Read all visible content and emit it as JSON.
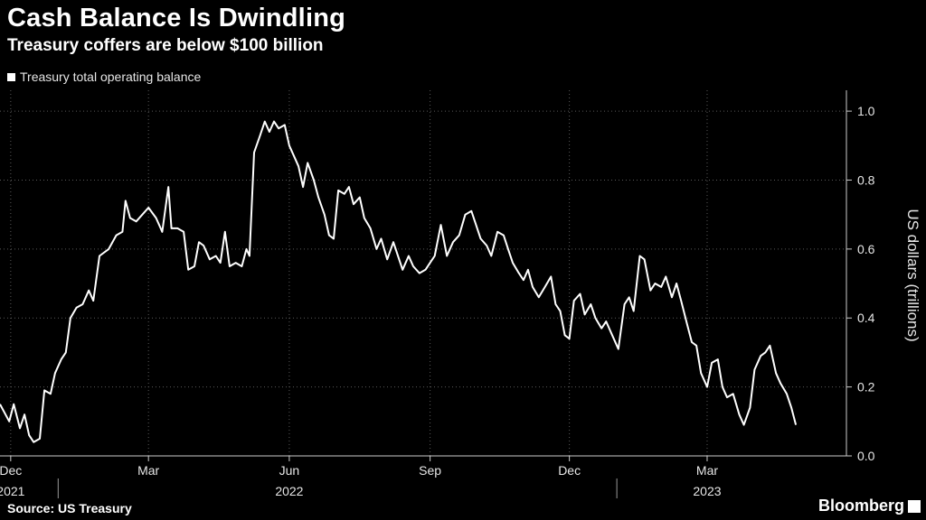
{
  "title": "Cash Balance Is Dwindling",
  "subtitle": "Treasury coffers are below $100 billion",
  "source": "Source: US Treasury",
  "brand": "Bloomberg",
  "colors": {
    "background": "#000000",
    "line": "#ffffff",
    "grid": "#5a5a5a"
  },
  "chart_data": {
    "type": "line",
    "ylabel": "US dollars (trillions)",
    "ylim": [
      0,
      1.05
    ],
    "yticks": [
      0.0,
      0.2,
      0.4,
      0.6,
      0.8,
      1.0
    ],
    "ytick_labels": [
      "0.0",
      "0.2",
      "0.4",
      "0.6",
      "0.8",
      "1.0"
    ],
    "xlim": [
      "2021-11-24",
      "2023-05-31"
    ],
    "xticks": [
      {
        "date": "2021-12-01",
        "label": "Dec"
      },
      {
        "date": "2022-03-01",
        "label": "Mar"
      },
      {
        "date": "2022-06-01",
        "label": "Jun"
      },
      {
        "date": "2022-09-01",
        "label": "Sep"
      },
      {
        "date": "2022-12-01",
        "label": "Dec"
      },
      {
        "date": "2023-03-01",
        "label": "Mar"
      }
    ],
    "years": [
      {
        "date": "2021-12-01",
        "label": "2021"
      },
      {
        "date": "2022-06-01",
        "label": "2022"
      },
      {
        "date": "2023-03-01",
        "label": "2023"
      }
    ],
    "year_dividers": [
      "2022-01-01",
      "2023-01-01"
    ],
    "grid": true,
    "legend": {
      "position": "top-left",
      "entries": [
        "Treasury total operating balance"
      ]
    },
    "series": [
      {
        "name": "Treasury total operating balance",
        "points": [
          [
            "2021-11-24",
            0.15
          ],
          [
            "2021-11-30",
            0.1
          ],
          [
            "2021-12-03",
            0.15
          ],
          [
            "2021-12-07",
            0.08
          ],
          [
            "2021-12-10",
            0.12
          ],
          [
            "2021-12-13",
            0.06
          ],
          [
            "2021-12-16",
            0.04
          ],
          [
            "2021-12-20",
            0.05
          ],
          [
            "2021-12-23",
            0.19
          ],
          [
            "2021-12-27",
            0.18
          ],
          [
            "2021-12-30",
            0.24
          ],
          [
            "2022-01-03",
            0.28
          ],
          [
            "2022-01-06",
            0.3
          ],
          [
            "2022-01-09",
            0.4
          ],
          [
            "2022-01-13",
            0.43
          ],
          [
            "2022-01-17",
            0.44
          ],
          [
            "2022-01-21",
            0.48
          ],
          [
            "2022-01-24",
            0.45
          ],
          [
            "2022-01-28",
            0.58
          ],
          [
            "2022-02-03",
            0.6
          ],
          [
            "2022-02-08",
            0.64
          ],
          [
            "2022-02-12",
            0.65
          ],
          [
            "2022-02-14",
            0.74
          ],
          [
            "2022-02-17",
            0.69
          ],
          [
            "2022-02-21",
            0.68
          ],
          [
            "2022-02-25",
            0.7
          ],
          [
            "2022-03-01",
            0.72
          ],
          [
            "2022-03-06",
            0.69
          ],
          [
            "2022-03-10",
            0.65
          ],
          [
            "2022-03-14",
            0.78
          ],
          [
            "2022-03-16",
            0.66
          ],
          [
            "2022-03-20",
            0.66
          ],
          [
            "2022-03-24",
            0.65
          ],
          [
            "2022-03-27",
            0.54
          ],
          [
            "2022-03-31",
            0.55
          ],
          [
            "2022-04-03",
            0.62
          ],
          [
            "2022-04-06",
            0.61
          ],
          [
            "2022-04-10",
            0.57
          ],
          [
            "2022-04-14",
            0.58
          ],
          [
            "2022-04-17",
            0.56
          ],
          [
            "2022-04-20",
            0.65
          ],
          [
            "2022-04-23",
            0.55
          ],
          [
            "2022-04-27",
            0.56
          ],
          [
            "2022-05-01",
            0.55
          ],
          [
            "2022-05-04",
            0.6
          ],
          [
            "2022-05-06",
            0.58
          ],
          [
            "2022-05-09",
            0.88
          ],
          [
            "2022-05-13",
            0.93
          ],
          [
            "2022-05-16",
            0.97
          ],
          [
            "2022-05-19",
            0.94
          ],
          [
            "2022-05-22",
            0.97
          ],
          [
            "2022-05-25",
            0.95
          ],
          [
            "2022-05-29",
            0.96
          ],
          [
            "2022-06-01",
            0.9
          ],
          [
            "2022-06-04",
            0.87
          ],
          [
            "2022-06-07",
            0.84
          ],
          [
            "2022-06-10",
            0.78
          ],
          [
            "2022-06-13",
            0.85
          ],
          [
            "2022-06-17",
            0.8
          ],
          [
            "2022-06-20",
            0.75
          ],
          [
            "2022-06-24",
            0.7
          ],
          [
            "2022-06-27",
            0.64
          ],
          [
            "2022-06-30",
            0.63
          ],
          [
            "2022-07-03",
            0.77
          ],
          [
            "2022-07-07",
            0.76
          ],
          [
            "2022-07-10",
            0.78
          ],
          [
            "2022-07-13",
            0.73
          ],
          [
            "2022-07-17",
            0.75
          ],
          [
            "2022-07-20",
            0.69
          ],
          [
            "2022-07-24",
            0.66
          ],
          [
            "2022-07-28",
            0.6
          ],
          [
            "2022-07-31",
            0.63
          ],
          [
            "2022-08-04",
            0.57
          ],
          [
            "2022-08-08",
            0.62
          ],
          [
            "2022-08-11",
            0.58
          ],
          [
            "2022-08-14",
            0.54
          ],
          [
            "2022-08-18",
            0.58
          ],
          [
            "2022-08-21",
            0.55
          ],
          [
            "2022-08-25",
            0.53
          ],
          [
            "2022-08-29",
            0.54
          ],
          [
            "2022-09-01",
            0.56
          ],
          [
            "2022-09-04",
            0.58
          ],
          [
            "2022-09-08",
            0.67
          ],
          [
            "2022-09-12",
            0.58
          ],
          [
            "2022-09-16",
            0.62
          ],
          [
            "2022-09-20",
            0.64
          ],
          [
            "2022-09-24",
            0.7
          ],
          [
            "2022-09-28",
            0.71
          ],
          [
            "2022-10-01",
            0.67
          ],
          [
            "2022-10-04",
            0.63
          ],
          [
            "2022-10-08",
            0.61
          ],
          [
            "2022-10-11",
            0.58
          ],
          [
            "2022-10-15",
            0.65
          ],
          [
            "2022-10-19",
            0.64
          ],
          [
            "2022-10-22",
            0.6
          ],
          [
            "2022-10-25",
            0.56
          ],
          [
            "2022-10-29",
            0.53
          ],
          [
            "2022-11-01",
            0.51
          ],
          [
            "2022-11-04",
            0.54
          ],
          [
            "2022-11-07",
            0.49
          ],
          [
            "2022-11-11",
            0.46
          ],
          [
            "2022-11-15",
            0.49
          ],
          [
            "2022-11-19",
            0.52
          ],
          [
            "2022-11-22",
            0.44
          ],
          [
            "2022-11-25",
            0.42
          ],
          [
            "2022-11-28",
            0.35
          ],
          [
            "2022-12-01",
            0.34
          ],
          [
            "2022-12-04",
            0.45
          ],
          [
            "2022-12-08",
            0.47
          ],
          [
            "2022-12-11",
            0.41
          ],
          [
            "2022-12-15",
            0.44
          ],
          [
            "2022-12-18",
            0.4
          ],
          [
            "2022-12-22",
            0.37
          ],
          [
            "2022-12-25",
            0.39
          ],
          [
            "2022-12-29",
            0.35
          ],
          [
            "2023-01-02",
            0.31
          ],
          [
            "2023-01-06",
            0.44
          ],
          [
            "2023-01-09",
            0.46
          ],
          [
            "2023-01-12",
            0.42
          ],
          [
            "2023-01-16",
            0.58
          ],
          [
            "2023-01-19",
            0.57
          ],
          [
            "2023-01-23",
            0.48
          ],
          [
            "2023-01-26",
            0.5
          ],
          [
            "2023-01-30",
            0.49
          ],
          [
            "2023-02-02",
            0.52
          ],
          [
            "2023-02-06",
            0.46
          ],
          [
            "2023-02-09",
            0.5
          ],
          [
            "2023-02-12",
            0.45
          ],
          [
            "2023-02-16",
            0.38
          ],
          [
            "2023-02-19",
            0.33
          ],
          [
            "2023-02-22",
            0.32
          ],
          [
            "2023-02-25",
            0.24
          ],
          [
            "2023-03-01",
            0.2
          ],
          [
            "2023-03-04",
            0.27
          ],
          [
            "2023-03-08",
            0.28
          ],
          [
            "2023-03-11",
            0.2
          ],
          [
            "2023-03-14",
            0.17
          ],
          [
            "2023-03-18",
            0.18
          ],
          [
            "2023-03-22",
            0.12
          ],
          [
            "2023-03-25",
            0.09
          ],
          [
            "2023-03-29",
            0.14
          ],
          [
            "2023-04-01",
            0.25
          ],
          [
            "2023-04-05",
            0.29
          ],
          [
            "2023-04-08",
            0.3
          ],
          [
            "2023-04-11",
            0.32
          ],
          [
            "2023-04-15",
            0.24
          ],
          [
            "2023-04-18",
            0.21
          ],
          [
            "2023-04-22",
            0.18
          ],
          [
            "2023-04-25",
            0.14
          ],
          [
            "2023-04-28",
            0.09
          ]
        ]
      }
    ]
  }
}
